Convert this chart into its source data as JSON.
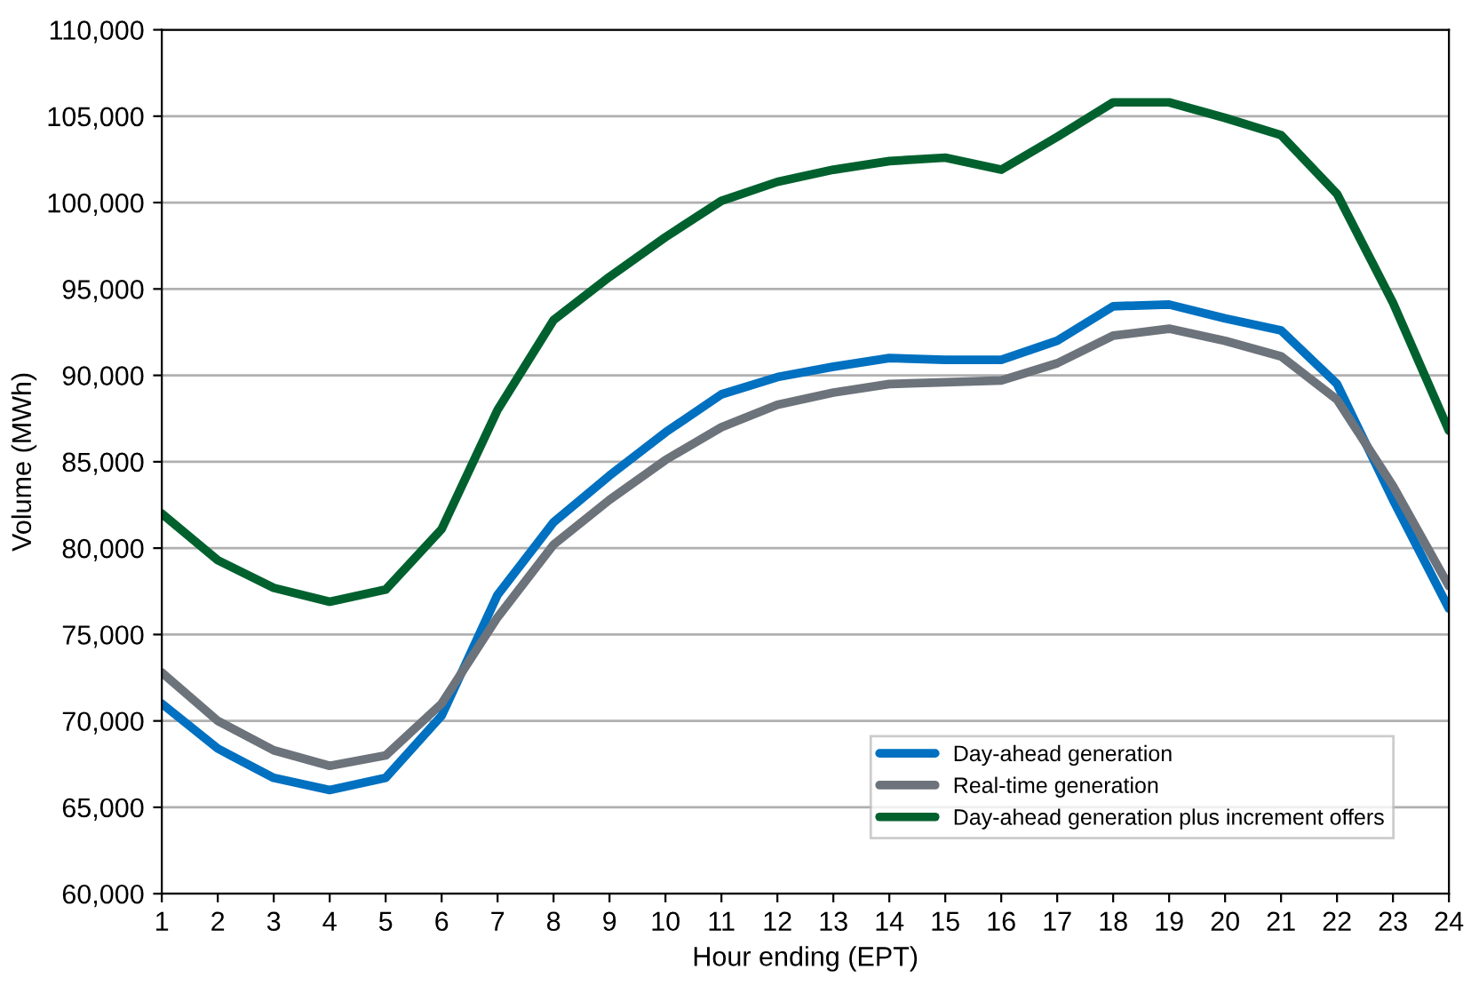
{
  "chart_data": {
    "type": "line",
    "xlabel": "Hour ending (EPT)",
    "ylabel": "Volume (MWh)",
    "x": [
      1,
      2,
      3,
      4,
      5,
      6,
      7,
      8,
      9,
      10,
      11,
      12,
      13,
      14,
      15,
      16,
      17,
      18,
      19,
      20,
      21,
      22,
      23,
      24
    ],
    "series": [
      {
        "name": "Day-ahead generation",
        "color": "#0070c0",
        "values": [
          71000,
          68400,
          66700,
          66000,
          66700,
          70300,
          77300,
          81500,
          84200,
          86700,
          88900,
          89900,
          90500,
          91000,
          90900,
          90900,
          92000,
          94000,
          94100,
          93300,
          92600,
          89500,
          82800,
          76500
        ]
      },
      {
        "name": "Real-time generation",
        "color": "#6d737b",
        "values": [
          72800,
          70000,
          68300,
          67400,
          68000,
          71000,
          76000,
          80200,
          82800,
          85100,
          87000,
          88300,
          89000,
          89500,
          89600,
          89700,
          90700,
          92300,
          92700,
          92000,
          91100,
          88600,
          83600,
          77800
        ]
      },
      {
        "name": "Day-ahead generation plus increment offers",
        "color": "#00612e",
        "values": [
          82000,
          79300,
          77700,
          76900,
          77600,
          81100,
          88000,
          93200,
          95700,
          98000,
          100100,
          101200,
          101900,
          102400,
          102600,
          101900,
          103800,
          105800,
          105800,
          104900,
          103900,
          100500,
          94200,
          86800
        ]
      }
    ],
    "xlim": [
      1,
      24
    ],
    "xticks": [
      1,
      2,
      3,
      4,
      5,
      6,
      7,
      8,
      9,
      10,
      11,
      12,
      13,
      14,
      15,
      16,
      17,
      18,
      19,
      20,
      21,
      22,
      23,
      24
    ],
    "ylim": [
      60000,
      110000
    ],
    "yticks": [
      {
        "value": 60000,
        "label": "60,000"
      },
      {
        "value": 65000,
        "label": "65,000"
      },
      {
        "value": 70000,
        "label": "70,000"
      },
      {
        "value": 75000,
        "label": "75,000"
      },
      {
        "value": 80000,
        "label": "80,000"
      },
      {
        "value": 85000,
        "label": "85,000"
      },
      {
        "value": 90000,
        "label": "90,000"
      },
      {
        "value": 95000,
        "label": "95,000"
      },
      {
        "value": 100000,
        "label": "100,000"
      },
      {
        "value": 105000,
        "label": "105,000"
      },
      {
        "value": 110000,
        "label": "110,000"
      }
    ],
    "grid": "y",
    "legend": "lower right",
    "marker": "none",
    "line_style": "solid"
  }
}
